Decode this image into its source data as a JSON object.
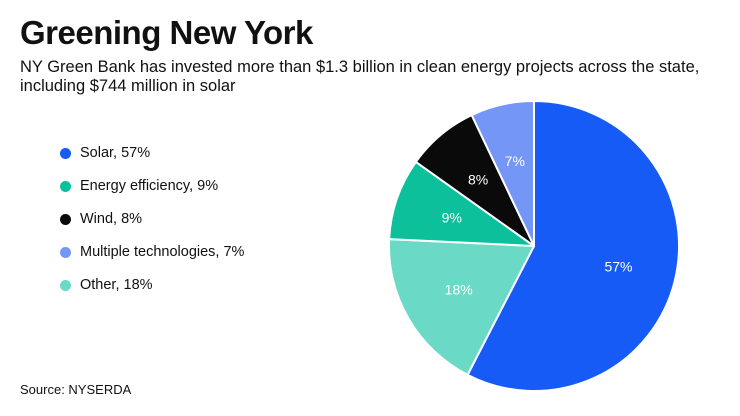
{
  "title": "Greening New York",
  "subtitle": "NY Green Bank has invested more than $1.3 billion in clean energy projects across the state, including $744 million in solar",
  "source": "Source: NYSERDA",
  "chart_data": {
    "type": "pie",
    "title": "Greening New York",
    "start_angle": "12 o'clock",
    "direction": "clockwise",
    "slices": [
      {
        "name": "Solar",
        "value": 57,
        "label": "57%",
        "legend": "Solar, 57%",
        "color": "#165BF5",
        "label_color": "#ffffff"
      },
      {
        "name": "Other",
        "value": 18,
        "label": "18%",
        "legend": "Other, 18%",
        "color": "#6ADAC6",
        "label_color": "#ffffff"
      },
      {
        "name": "Energy efficiency",
        "value": 9,
        "label": "9%",
        "legend": "Energy efficiency, 9%",
        "color": "#0BC09A",
        "label_color": "#ffffff"
      },
      {
        "name": "Wind",
        "value": 8,
        "label": "8%",
        "legend": "Wind, 8%",
        "color": "#0A0A0A",
        "label_color": "#ffffff"
      },
      {
        "name": "Multiple technologies",
        "value": 7,
        "label": "7%",
        "legend": "Multiple technologies, 7%",
        "color": "#7396F7",
        "label_color": "#ffffff"
      }
    ],
    "legend_order": [
      "Solar",
      "Energy efficiency",
      "Wind",
      "Multiple technologies",
      "Other"
    ]
  }
}
